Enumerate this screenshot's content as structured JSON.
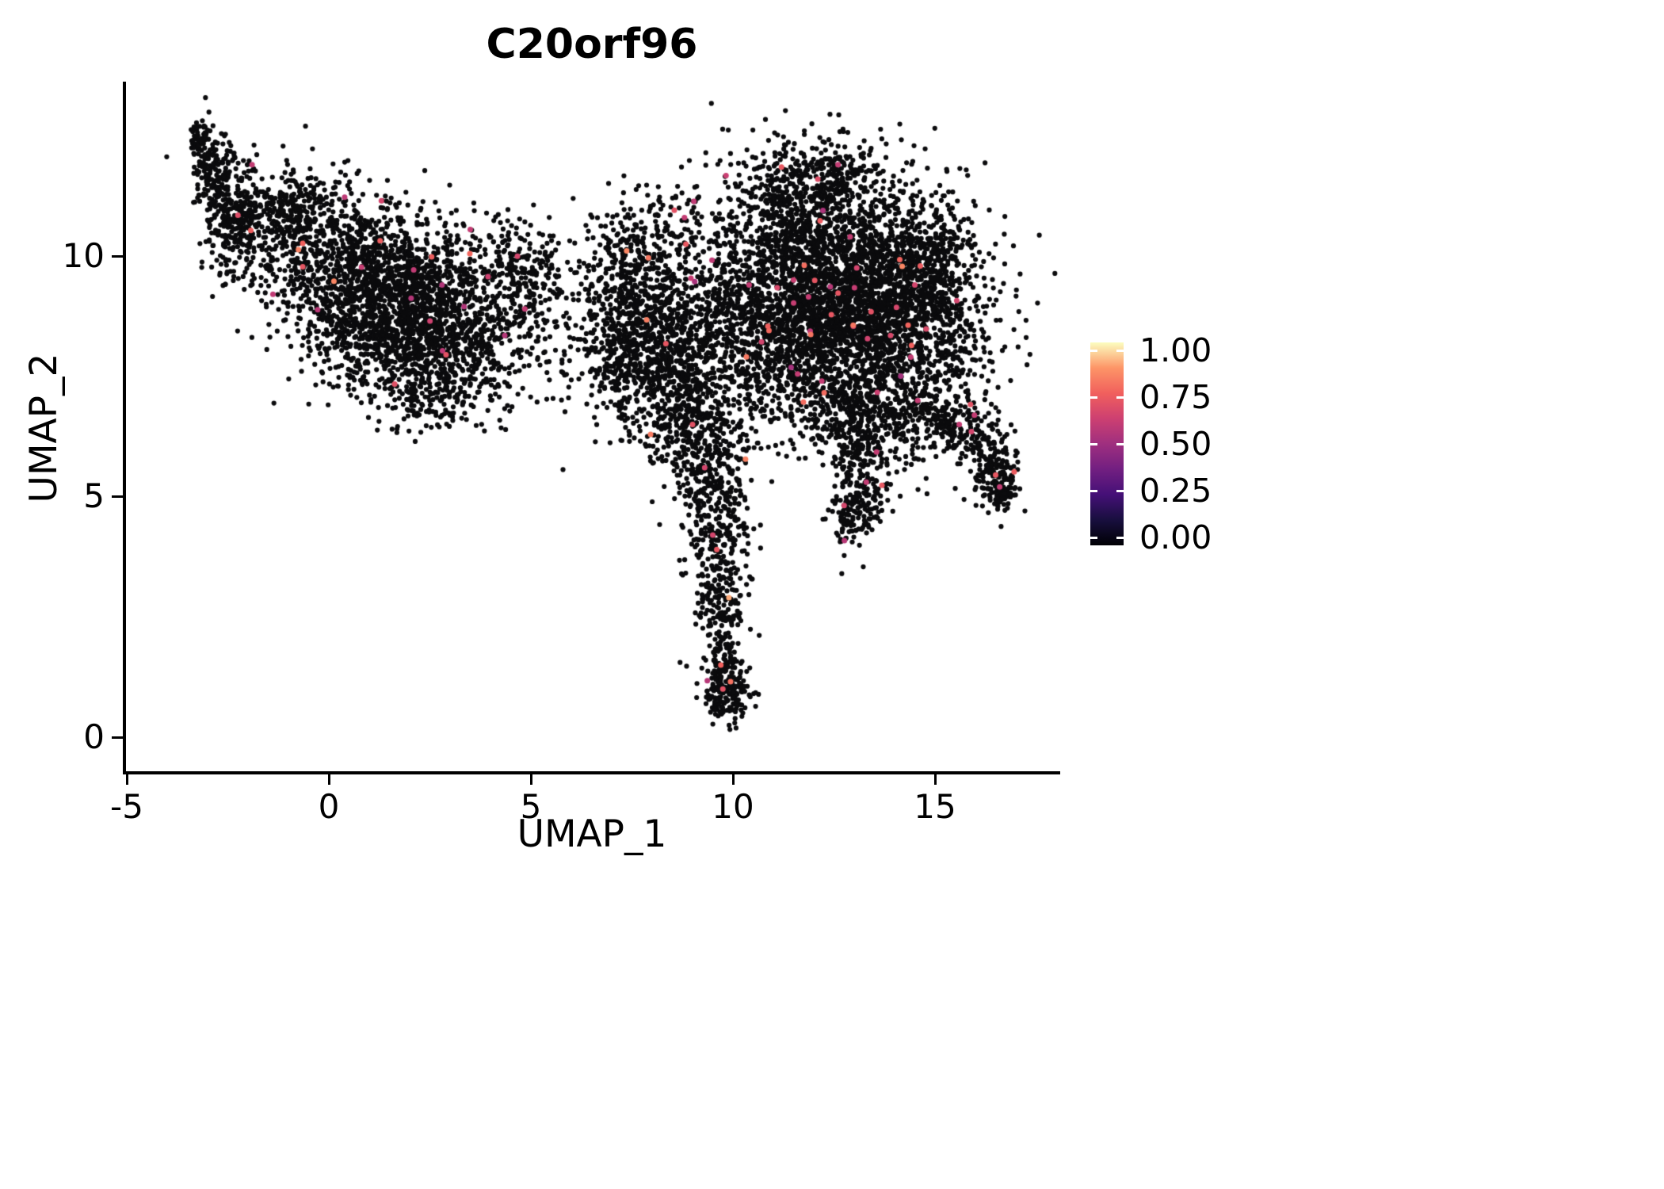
{
  "chart_data": {
    "type": "scatter",
    "title": "C20orf96",
    "xlabel": "UMAP_1",
    "ylabel": "UMAP_2",
    "xlim": [
      -5,
      18
    ],
    "ylim": [
      -0.8,
      13.6
    ],
    "grid": false,
    "x_ticks": [
      -5,
      0,
      5,
      10,
      15
    ],
    "x_tick_labels": [
      "-5",
      "0",
      "5",
      "10",
      "15"
    ],
    "y_ticks": [
      0,
      5,
      10
    ],
    "y_tick_labels": [
      "0",
      "5",
      "10"
    ],
    "point_color_zero": "#0b0b0d",
    "legend_position": "right",
    "colorbar": {
      "tick_labels": [
        "1.00",
        "0.75",
        "0.50",
        "0.25",
        "0.00"
      ],
      "tick_values": [
        1.0,
        0.75,
        0.5,
        0.25,
        0.0
      ],
      "stops": [
        [
          "0",
          "#000004"
        ],
        [
          "0.125",
          "#180F3E"
        ],
        [
          "0.25",
          "#451077"
        ],
        [
          "0.375",
          "#721F81"
        ],
        [
          "0.5",
          "#9F2F7F"
        ],
        [
          "0.625",
          "#CD4071"
        ],
        [
          "0.75",
          "#F1605D"
        ],
        [
          "0.875",
          "#FD9567"
        ],
        [
          "1",
          "#FCFDBF"
        ]
      ]
    },
    "highlight": {
      "fraction": 0.006,
      "value_range": [
        0.5,
        0.85
      ],
      "points": [
        [
          9.7,
          1.5,
          0.75
        ],
        [
          9.75,
          1.0,
          0.7
        ],
        [
          9.6,
          3.9,
          0.72
        ],
        [
          9.5,
          4.2,
          0.65
        ],
        [
          9.0,
          6.5,
          0.7
        ],
        [
          16.5,
          5.45,
          0.72
        ],
        [
          16.6,
          5.2,
          0.6
        ],
        [
          15.9,
          6.35,
          0.65
        ],
        [
          15.6,
          6.5,
          0.6
        ],
        [
          11.2,
          11.85,
          0.72
        ],
        [
          12.1,
          11.6,
          0.68
        ],
        [
          12.6,
          11.9,
          0.6
        ],
        [
          8.55,
          10.95,
          0.7
        ],
        [
          8.8,
          10.8,
          0.6
        ],
        [
          1.3,
          11.15,
          0.65
        ],
        [
          3.5,
          10.55,
          0.6
        ],
        [
          -2.25,
          10.85,
          0.68
        ],
        [
          -1.9,
          11.9,
          0.6
        ],
        [
          2.9,
          7.95,
          0.7
        ],
        [
          4.85,
          8.9,
          0.6
        ],
        [
          14.5,
          9.4,
          0.65
        ],
        [
          12.9,
          10.4,
          0.6
        ],
        [
          11.5,
          9.5,
          0.62
        ],
        [
          13.9,
          8.35,
          0.66
        ],
        [
          11.6,
          7.55,
          0.6
        ],
        [
          12.2,
          7.4,
          0.6
        ],
        [
          10.4,
          9.4,
          0.6
        ],
        [
          13.3,
          5.3,
          0.6
        ],
        [
          9.3,
          5.6,
          0.65
        ],
        [
          14.4,
          7.9,
          0.6
        ],
        [
          2.8,
          9.4,
          0.55
        ],
        [
          9.9,
          2.9,
          0.9
        ]
      ]
    },
    "clusters": [
      {
        "x": -3.15,
        "y": 12.4,
        "sx": 0.18,
        "sy": 0.3,
        "n": 60
      },
      {
        "x": -2.75,
        "y": 11.6,
        "sx": 0.3,
        "sy": 0.45,
        "n": 140
      },
      {
        "x": -2.3,
        "y": 10.7,
        "sx": 0.45,
        "sy": 0.55,
        "n": 260
      },
      {
        "x": -1.2,
        "y": 11.0,
        "sx": 0.7,
        "sy": 0.45,
        "n": 200
      },
      {
        "x": -0.2,
        "y": 10.6,
        "sx": 0.8,
        "sy": 0.5,
        "n": 220
      },
      {
        "x": 0.9,
        "y": 9.6,
        "sx": 1.3,
        "sy": 0.75,
        "n": 900
      },
      {
        "x": 2.2,
        "y": 9.0,
        "sx": 1.3,
        "sy": 0.8,
        "n": 900
      },
      {
        "x": 1.5,
        "y": 8.2,
        "sx": 1.0,
        "sy": 0.6,
        "n": 400
      },
      {
        "x": 3.3,
        "y": 8.1,
        "sx": 0.9,
        "sy": 0.7,
        "n": 350
      },
      {
        "x": 2.6,
        "y": 7.0,
        "sx": 0.7,
        "sy": 0.35,
        "n": 130
      },
      {
        "x": 4.6,
        "y": 9.6,
        "sx": 0.6,
        "sy": 0.6,
        "n": 180
      },
      {
        "x": 6.3,
        "y": 9.4,
        "sx": 0.8,
        "sy": 0.7,
        "n": 90
      },
      {
        "x": 5.6,
        "y": 7.9,
        "sx": 0.8,
        "sy": 0.6,
        "n": 60
      },
      {
        "x": 8.0,
        "y": 8.6,
        "sx": 0.9,
        "sy": 0.9,
        "n": 600
      },
      {
        "x": 8.6,
        "y": 7.6,
        "sx": 0.8,
        "sy": 0.7,
        "n": 420
      },
      {
        "x": 8.3,
        "y": 10.6,
        "sx": 0.9,
        "sy": 0.55,
        "n": 130
      },
      {
        "x": 7.6,
        "y": 9.8,
        "sx": 0.5,
        "sy": 0.5,
        "n": 120
      },
      {
        "x": 7.3,
        "y": 7.9,
        "sx": 0.4,
        "sy": 0.8,
        "n": 150
      },
      {
        "x": 8.9,
        "y": 6.4,
        "sx": 0.6,
        "sy": 0.5,
        "n": 130
      },
      {
        "x": 10.3,
        "y": 7.2,
        "sx": 0.7,
        "sy": 1.0,
        "n": 180
      },
      {
        "x": 10.0,
        "y": 9.3,
        "sx": 0.5,
        "sy": 0.8,
        "n": 150
      },
      {
        "x": 12.4,
        "y": 9.6,
        "sx": 1.5,
        "sy": 1.1,
        "n": 1900
      },
      {
        "x": 13.4,
        "y": 8.6,
        "sx": 1.3,
        "sy": 0.9,
        "n": 1100
      },
      {
        "x": 11.4,
        "y": 8.2,
        "sx": 0.8,
        "sy": 0.8,
        "n": 420
      },
      {
        "x": 12.2,
        "y": 11.6,
        "sx": 0.9,
        "sy": 0.5,
        "n": 280
      },
      {
        "x": 11.3,
        "y": 10.9,
        "sx": 0.6,
        "sy": 0.5,
        "n": 180
      },
      {
        "x": 15.2,
        "y": 8.8,
        "sx": 0.6,
        "sy": 0.9,
        "n": 280
      },
      {
        "x": 14.6,
        "y": 10.2,
        "sx": 0.7,
        "sy": 0.6,
        "n": 250
      },
      {
        "x": 13.6,
        "y": 6.7,
        "sx": 0.8,
        "sy": 0.6,
        "n": 280
      },
      {
        "x": 12.7,
        "y": 6.9,
        "sx": 0.6,
        "sy": 0.5,
        "n": 180
      },
      {
        "x": 13.2,
        "y": 5.4,
        "sx": 0.35,
        "sy": 0.7,
        "n": 200
      },
      {
        "x": 13.0,
        "y": 4.7,
        "sx": 0.3,
        "sy": 0.3,
        "n": 80
      },
      {
        "x": 14.9,
        "y": 6.9,
        "sx": 0.5,
        "sy": 0.4,
        "n": 130
      },
      {
        "x": 15.7,
        "y": 6.3,
        "sx": 0.4,
        "sy": 0.3,
        "n": 110
      },
      {
        "x": 16.4,
        "y": 5.6,
        "sx": 0.3,
        "sy": 0.5,
        "n": 150
      },
      {
        "x": 16.7,
        "y": 5.2,
        "sx": 0.2,
        "sy": 0.25,
        "n": 60
      },
      {
        "x": 9.2,
        "y": 5.9,
        "sx": 0.5,
        "sy": 0.55,
        "n": 170
      },
      {
        "x": 9.5,
        "y": 4.9,
        "sx": 0.45,
        "sy": 0.5,
        "n": 150
      },
      {
        "x": 9.6,
        "y": 3.8,
        "sx": 0.35,
        "sy": 0.55,
        "n": 130
      },
      {
        "x": 9.7,
        "y": 2.7,
        "sx": 0.3,
        "sy": 0.5,
        "n": 110
      },
      {
        "x": 9.75,
        "y": 1.6,
        "sx": 0.25,
        "sy": 0.45,
        "n": 95
      },
      {
        "x": 9.85,
        "y": 0.85,
        "sx": 0.33,
        "sy": 0.28,
        "n": 150
      }
    ]
  }
}
